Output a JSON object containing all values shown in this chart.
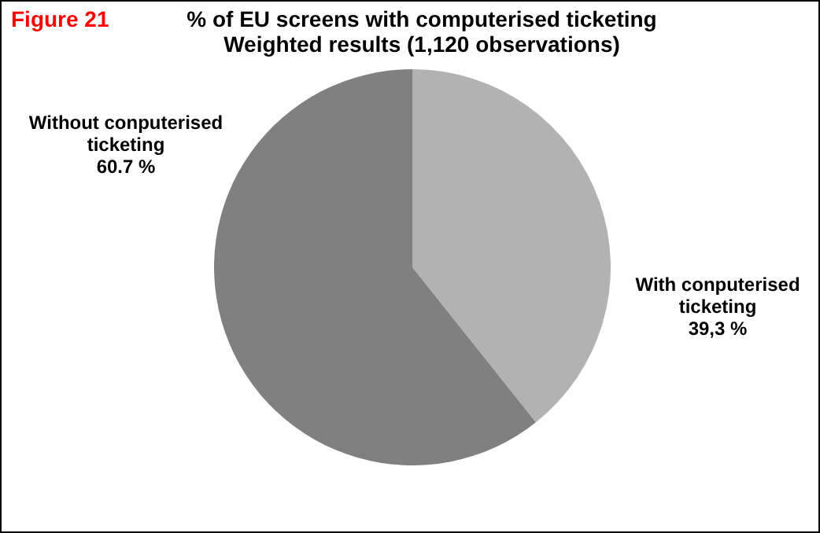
{
  "chart_data": {
    "type": "pie",
    "title": "% of EU screens with computerised ticketing",
    "subtitle": "Weighted results (1,120 observations)",
    "annotations": [
      "Figure 21"
    ],
    "categories": [
      "With conputerised ticketing",
      "Without conputerised ticketing"
    ],
    "values": [
      39.3,
      60.7
    ],
    "value_labels": [
      "39,3 %",
      "60.7 %"
    ],
    "colors": [
      "#b2b2b2",
      "#808080"
    ]
  }
}
